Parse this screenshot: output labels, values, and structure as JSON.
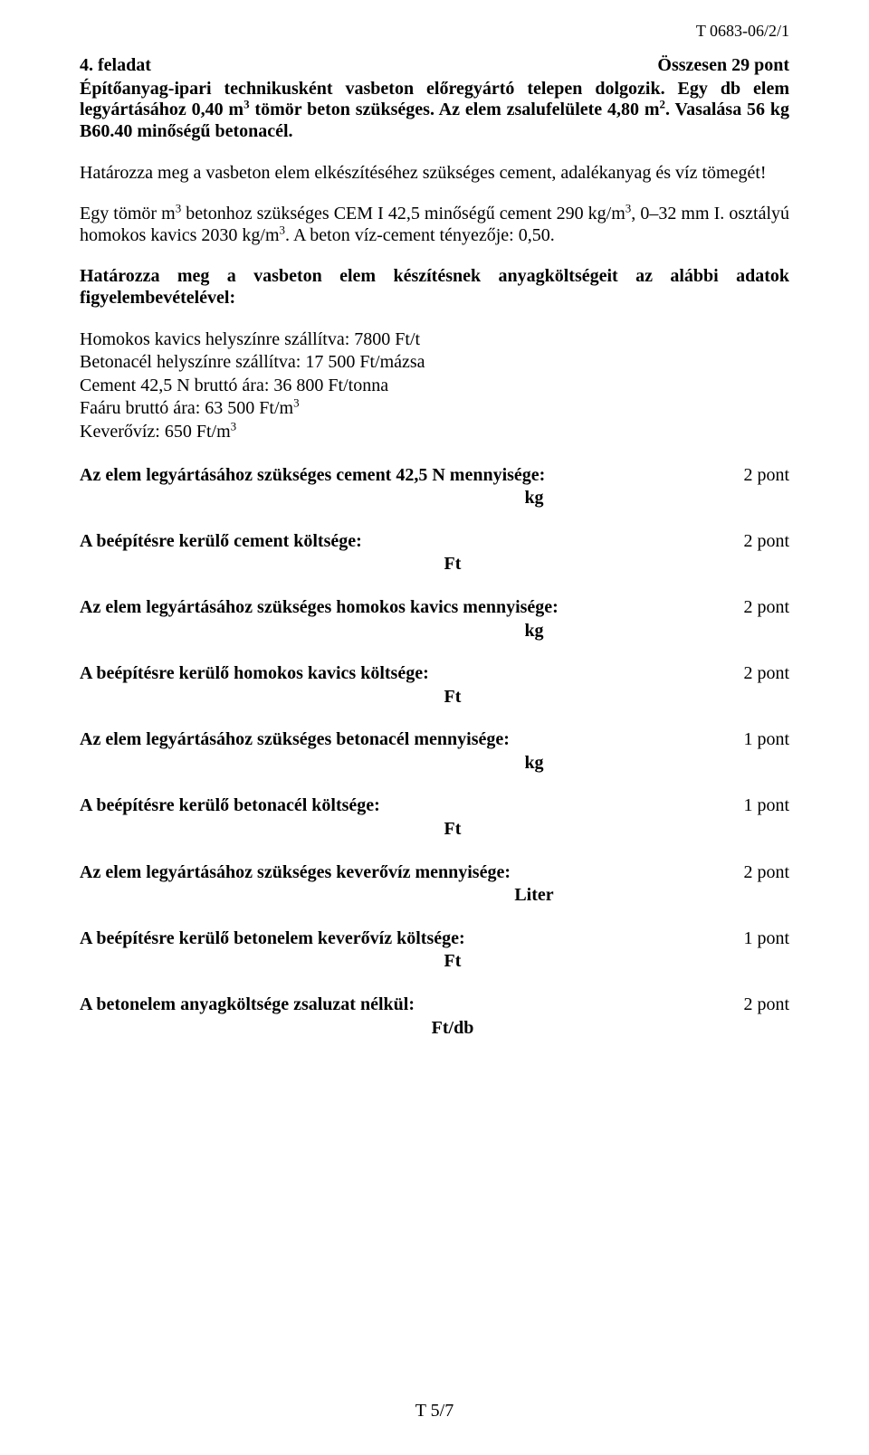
{
  "header_code": "T 0683-06/2/1",
  "task_label": "4. feladat",
  "total_points": "Összesen 29 pont",
  "intro1_a": "Építőanyag-ipari technikusként vasbeton előregyártó telepen dolgozik. Egy db elem legyártásához 0,40 m",
  "intro1_b": " tömör beton szükséges. Az elem zsalufelülete 4,80 m",
  "intro1_c": ". Vasalása 56 kg B60.40 minőségű betonacél.",
  "intro2": "Határozza meg a vasbeton elem elkészítéséhez szükséges cement, adalékanyag és víz tömegét!",
  "intro3_a": "Egy tömör m",
  "intro3_b": " betonhoz szükséges CEM I 42,5 minőségű cement 290 kg/m",
  "intro3_c": ", 0–32 mm I. osztályú homokos kavics 2030 kg/m",
  "intro3_d": ". A beton víz-cement tényezője: 0,50.",
  "intro4": "Határozza meg a vasbeton elem készítésnek anyagköltségeit az alábbi adatok figyelembevételével:",
  "d1": "Homokos kavics helyszínre szállítva: 7800 Ft/t",
  "d2": "Betonacél helyszínre szállítva: 17 500 Ft/mázsa",
  "d3": "Cement 42,5 N bruttó ára: 36 800 Ft/tonna",
  "d4_a": "Faáru bruttó ára: 63 500 Ft/m",
  "d5_a": "Keverővíz: 650 Ft/m",
  "items": [
    {
      "label": "Az elem legyártásához szükséges cement 42,5 N mennyisége:",
      "pts": "2 pont",
      "unit": "kg",
      "mode": "center"
    },
    {
      "label": "A beépítésre kerülő cement költsége:",
      "pts": "2 pont",
      "unit": "Ft",
      "mode": "center-narrow"
    },
    {
      "label": "Az elem legyártásához szükséges homokos kavics mennyisége:",
      "pts": "2 pont",
      "unit": "kg",
      "mode": "center"
    },
    {
      "label": "A beépítésre kerülő homokos kavics költsége:",
      "pts": "2 pont",
      "unit": "Ft",
      "mode": "center-narrow"
    },
    {
      "label": "Az elem legyártásához szükséges betonacél mennyisége:",
      "pts": "1 pont",
      "unit": "kg",
      "mode": "center"
    },
    {
      "label": "A beépítésre kerülő betonacél költsége:",
      "pts": "1 pont",
      "unit": "Ft",
      "mode": "center-narrow"
    },
    {
      "label": "Az elem legyártásához szükséges keverővíz mennyisége:",
      "pts": "2 pont",
      "unit": "Liter",
      "mode": "center"
    },
    {
      "label": "A beépítésre kerülő betonelem keverővíz költsége:",
      "pts": "1 pont",
      "unit": "Ft",
      "mode": "center-narrow"
    },
    {
      "label": "A betonelem anyagköltsége zsaluzat nélkül:",
      "pts": "2 pont",
      "unit": "Ft/db",
      "mode": "center-narrow"
    }
  ],
  "footer": "T 5/7",
  "sup3": "3",
  "sup2": "2"
}
